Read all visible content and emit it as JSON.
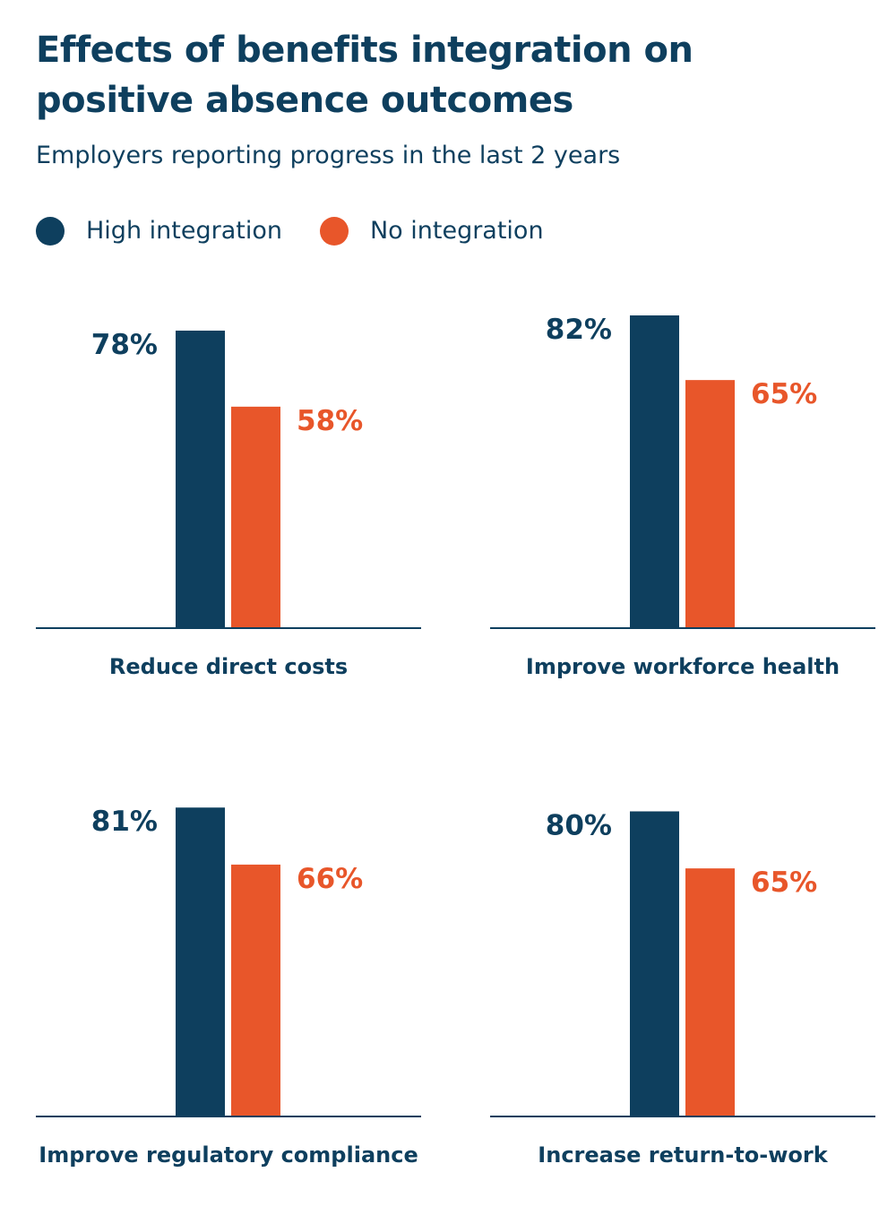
{
  "title": "Effects of benefits integration on positive absence outcomes",
  "subtitle": "Employers reporting progress in the last 2 years",
  "legend": {
    "high": "High integration",
    "none": "No integration"
  },
  "colors": {
    "high": "#0e3f5e",
    "none": "#e8562a",
    "text": "#0e3f5e",
    "axis": "#0e3f5e"
  },
  "chart_data": [
    {
      "type": "bar",
      "category": "Reduce direct costs",
      "series": [
        {
          "name": "High integration",
          "value": 78,
          "label": "78%"
        },
        {
          "name": "No integration",
          "value": 58,
          "label": "58%"
        }
      ],
      "ylim": [
        0,
        82
      ]
    },
    {
      "type": "bar",
      "category": "Improve workforce health",
      "series": [
        {
          "name": "High integration",
          "value": 82,
          "label": "82%"
        },
        {
          "name": "No integration",
          "value": 65,
          "label": "65%"
        }
      ],
      "ylim": [
        0,
        82
      ]
    },
    {
      "type": "bar",
      "category": "Improve regulatory compliance",
      "series": [
        {
          "name": "High integration",
          "value": 81,
          "label": "81%"
        },
        {
          "name": "No integration",
          "value": 66,
          "label": "66%"
        }
      ],
      "ylim": [
        0,
        82
      ]
    },
    {
      "type": "bar",
      "category": "Increase return-to-work",
      "series": [
        {
          "name": "High integration",
          "value": 80,
          "label": "80%"
        },
        {
          "name": "No integration",
          "value": 65,
          "label": "65%"
        }
      ],
      "ylim": [
        0,
        82
      ]
    }
  ]
}
